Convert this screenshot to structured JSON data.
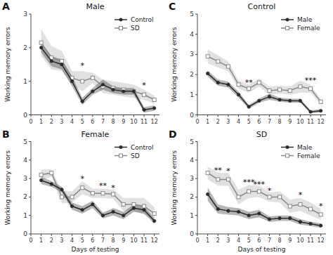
{
  "chart_data": [
    {
      "type": "line",
      "panel_label": "A",
      "title": "Male",
      "y_label": "Working memory errors",
      "x": [
        1,
        2,
        3,
        4,
        5,
        6,
        7,
        8,
        9,
        10,
        11,
        12
      ],
      "xlim": [
        0,
        12.5
      ],
      "xticks": [
        0,
        1,
        2,
        3,
        4,
        5,
        6,
        7,
        8,
        9,
        10,
        11,
        12
      ],
      "ylim": [
        0,
        3
      ],
      "yticks": [
        0,
        1,
        2,
        3
      ],
      "grid": false,
      "legend": "upper right",
      "series": [
        {
          "name": "Control",
          "color": "#2a2a2a",
          "marker": "circle",
          "values": [
            2.0,
            1.6,
            1.5,
            1.0,
            0.4,
            0.7,
            0.9,
            0.75,
            0.7,
            0.7,
            0.15,
            0.2
          ],
          "sem": [
            0.15,
            0.15,
            0.15,
            0.15,
            0.1,
            0.1,
            0.15,
            0.1,
            0.1,
            0.1,
            0.08,
            0.08
          ]
        },
        {
          "name": "SD",
          "color": "#888888",
          "marker": "square",
          "values": [
            2.15,
            1.7,
            1.6,
            1.1,
            1.0,
            1.1,
            0.85,
            0.8,
            0.75,
            0.7,
            0.6,
            0.45
          ],
          "sem": [
            0.4,
            0.35,
            0.3,
            0.2,
            0.3,
            0.15,
            0.2,
            0.2,
            0.2,
            0.2,
            0.15,
            0.12
          ]
        }
      ],
      "annotations": [
        {
          "x": 5,
          "y": 1.5,
          "text": "*"
        },
        {
          "x": 11,
          "y": 0.9,
          "text": "*"
        }
      ]
    },
    {
      "type": "line",
      "panel_label": "B",
      "title": "Female",
      "y_label": "Working memory errors",
      "x_label": "Days of testing",
      "x": [
        1,
        2,
        3,
        4,
        5,
        6,
        7,
        8,
        9,
        10,
        11,
        12
      ],
      "xlim": [
        0,
        12.5
      ],
      "xticks": [
        0,
        1,
        2,
        3,
        4,
        5,
        6,
        7,
        8,
        9,
        10,
        11,
        12
      ],
      "ylim": [
        0,
        5
      ],
      "yticks": [
        0,
        1,
        2,
        3,
        4,
        5
      ],
      "grid": false,
      "legend": "upper right",
      "series": [
        {
          "name": "Control",
          "color": "#2a2a2a",
          "marker": "circle",
          "values": [
            2.9,
            2.7,
            2.4,
            1.5,
            1.3,
            1.6,
            1.0,
            1.2,
            1.0,
            1.4,
            1.3,
            0.7
          ],
          "sem": [
            0.2,
            0.15,
            0.15,
            0.2,
            0.2,
            0.2,
            0.15,
            0.2,
            0.2,
            0.2,
            0.2,
            0.15
          ]
        },
        {
          "name": "SD",
          "color": "#888888",
          "marker": "square",
          "values": [
            3.2,
            3.3,
            2.0,
            2.0,
            2.5,
            2.2,
            2.2,
            2.15,
            1.6,
            1.6,
            1.5,
            1.1
          ],
          "sem": [
            0.3,
            0.2,
            0.35,
            0.3,
            0.35,
            0.25,
            0.25,
            0.25,
            0.35,
            0.35,
            0.45,
            0.35
          ]
        }
      ],
      "annotations": [
        {
          "x": 5,
          "y": 3.05,
          "text": "*"
        },
        {
          "x": 7,
          "y": 2.65,
          "text": "**"
        },
        {
          "x": 8,
          "y": 2.55,
          "text": "*"
        }
      ]
    },
    {
      "type": "line",
      "panel_label": "C",
      "title": "Control",
      "y_label": "Working memory errors",
      "x": [
        1,
        2,
        3,
        4,
        5,
        6,
        7,
        8,
        9,
        10,
        11,
        12
      ],
      "xlim": [
        0,
        12.5
      ],
      "xticks": [
        0,
        1,
        2,
        3,
        4,
        5,
        6,
        7,
        8,
        9,
        10,
        11,
        12
      ],
      "ylim": [
        0,
        5
      ],
      "yticks": [
        0,
        1,
        2,
        3,
        4,
        5
      ],
      "grid": false,
      "legend": "upper right",
      "series": [
        {
          "name": "Male",
          "color": "#2a2a2a",
          "marker": "circle",
          "values": [
            2.05,
            1.6,
            1.5,
            1.0,
            0.4,
            0.7,
            0.9,
            0.75,
            0.7,
            0.7,
            0.15,
            0.2
          ],
          "sem": [
            0.15,
            0.15,
            0.15,
            0.15,
            0.1,
            0.1,
            0.15,
            0.1,
            0.1,
            0.1,
            0.08,
            0.08
          ]
        },
        {
          "name": "Female",
          "color": "#888888",
          "marker": "square",
          "values": [
            2.9,
            2.65,
            2.4,
            1.5,
            1.3,
            1.6,
            1.2,
            1.25,
            1.2,
            1.4,
            1.3,
            0.65
          ],
          "sem": [
            0.35,
            0.3,
            0.25,
            0.2,
            0.2,
            0.2,
            0.2,
            0.2,
            0.2,
            0.3,
            0.2,
            0.12
          ]
        }
      ],
      "annotations": [
        {
          "x": 5,
          "y": 1.65,
          "text": "**"
        },
        {
          "x": 11,
          "y": 1.75,
          "text": "***"
        }
      ]
    },
    {
      "type": "line",
      "panel_label": "D",
      "title": "SD",
      "y_label": "Working memory errors",
      "x_label": "Days of testing",
      "x": [
        1,
        2,
        3,
        4,
        5,
        6,
        7,
        8,
        9,
        10,
        11,
        12
      ],
      "xlim": [
        0,
        12.5
      ],
      "xticks": [
        0,
        1,
        2,
        3,
        4,
        5,
        6,
        7,
        8,
        9,
        10,
        11,
        12
      ],
      "ylim": [
        0,
        5
      ],
      "yticks": [
        0,
        1,
        2,
        3,
        4,
        5
      ],
      "grid": false,
      "legend": "upper right",
      "series": [
        {
          "name": "Male",
          "color": "#2a2a2a",
          "marker": "circle",
          "values": [
            2.15,
            1.35,
            1.25,
            1.2,
            1.0,
            1.1,
            0.8,
            0.85,
            0.85,
            0.65,
            0.55,
            0.45
          ],
          "sem": [
            0.35,
            0.25,
            0.2,
            0.2,
            0.2,
            0.2,
            0.15,
            0.15,
            0.15,
            0.15,
            0.12,
            0.12
          ]
        },
        {
          "name": "Female",
          "color": "#888888",
          "marker": "square",
          "values": [
            3.3,
            2.95,
            2.95,
            2.0,
            2.3,
            2.3,
            2.0,
            2.0,
            1.5,
            1.6,
            1.35,
            1.05
          ],
          "sem": [
            0.35,
            0.35,
            0.35,
            0.4,
            0.35,
            0.3,
            0.25,
            0.3,
            0.35,
            0.35,
            0.35,
            0.3
          ]
        }
      ],
      "annotations": [
        {
          "x": 2,
          "y": 3.5,
          "text": "**"
        },
        {
          "x": 3,
          "y": 3.45,
          "text": "*"
        },
        {
          "x": 5,
          "y": 2.85,
          "text": "***"
        },
        {
          "x": 6,
          "y": 2.75,
          "text": "***"
        },
        {
          "x": 7,
          "y": 2.4,
          "text": "*"
        },
        {
          "x": 10,
          "y": 2.15,
          "text": "*"
        },
        {
          "x": 12,
          "y": 1.55,
          "text": "*"
        }
      ]
    }
  ]
}
